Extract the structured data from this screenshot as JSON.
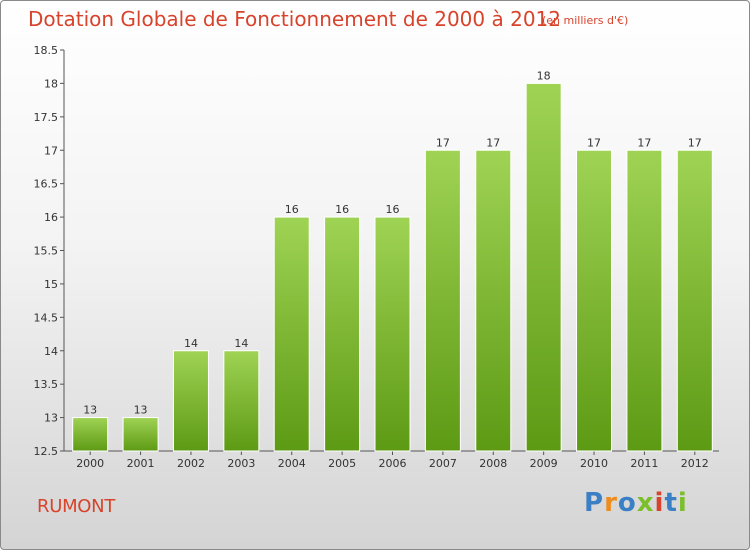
{
  "header": {
    "title": "Dotation Globale de Fonctionnement de 2000 à 2012",
    "subtitle": "(en milliers d'€)"
  },
  "footer": {
    "commune": "RUMONT",
    "logo": [
      "P",
      "r",
      "o",
      "x",
      "i",
      "t",
      "i"
    ]
  },
  "colors": {
    "title": "#d8432c",
    "bar_top": "#9fd354",
    "bar_bottom": "#5d9a14",
    "axis": "#555555",
    "logo_letters": [
      "#3b7fc4",
      "#f08c1e",
      "#3b7fc4",
      "#7bbf2a",
      "#d8432c",
      "#3b7fc4",
      "#7bbf2a"
    ]
  },
  "chart_data": {
    "type": "bar",
    "title": "Dotation Globale de Fonctionnement de 2000 à 2012",
    "ylabel": "",
    "xlabel": "",
    "categories": [
      "2000",
      "2001",
      "2002",
      "2003",
      "2004",
      "2005",
      "2006",
      "2007",
      "2008",
      "2009",
      "2010",
      "2011",
      "2012"
    ],
    "values": [
      13,
      13,
      14,
      14,
      16,
      16,
      16,
      17,
      17,
      18,
      17,
      17,
      17
    ],
    "ylim": [
      12.5,
      18.5
    ],
    "yticks": [
      "12.5",
      "13",
      "13.5",
      "14",
      "14.5",
      "15",
      "15.5",
      "16",
      "16.5",
      "17",
      "17.5",
      "18",
      "18.5"
    ],
    "grid": false,
    "data_labels": true
  }
}
